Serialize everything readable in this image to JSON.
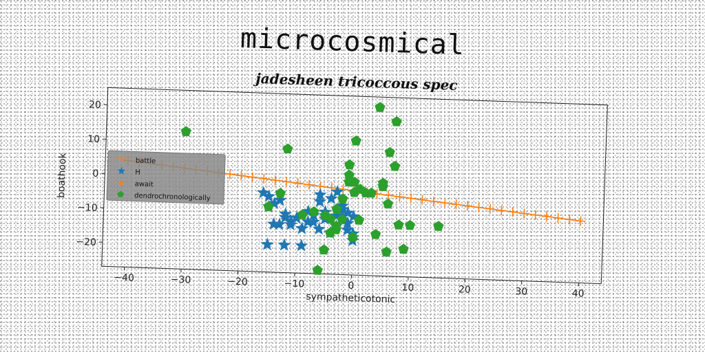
{
  "page": {
    "title": "microcosmical"
  },
  "chart_data": {
    "type": "scatter",
    "title": "jadesheen tricoccous spec",
    "xlabel": "sympatheticotonic",
    "ylabel": "boathook",
    "xlim": [
      -44,
      44
    ],
    "ylim": [
      -27,
      25
    ],
    "xticks": [
      -40,
      -30,
      -20,
      -10,
      0,
      10,
      20,
      30,
      40
    ],
    "yticks": [
      -20,
      -10,
      0,
      10,
      20
    ],
    "grid": false,
    "legend": {
      "position": "upper-left",
      "entries": [
        "battle",
        "H",
        "await",
        "dendrochronologically"
      ]
    },
    "series": [
      {
        "name": "battle",
        "kind": "line",
        "color": "#ff7f0e",
        "marker": "plus",
        "x": [
          -40.0,
          -38.0,
          -36.0,
          -34.0,
          -32.0,
          -30.0,
          -28.0,
          -26.0,
          -24.0,
          -22.0,
          -20.0,
          -18.0,
          -16.0,
          -14.0,
          -12.0,
          -10.0,
          -8.0,
          -6.0,
          -4.0,
          -2.0,
          0.0,
          2.0,
          4.0,
          6.0,
          8.0,
          10.0,
          12.0,
          14.0,
          16.0,
          18.0,
          20.0,
          22.0,
          24.0,
          26.0,
          28.0,
          30.0,
          32.0,
          34.0,
          36.0,
          38.0,
          40.0
        ],
        "y": [
          4.0,
          3.68,
          3.35,
          3.03,
          2.7,
          2.38,
          2.05,
          1.73,
          1.4,
          1.08,
          0.75,
          0.43,
          0.1,
          -0.23,
          -0.55,
          -0.88,
          -1.2,
          -1.53,
          -1.85,
          -2.18,
          -2.5,
          -2.83,
          -3.15,
          -3.48,
          -3.8,
          -4.13,
          -4.45,
          -4.78,
          -5.1,
          -5.43,
          -5.75,
          -6.08,
          -6.4,
          -6.73,
          -7.05,
          -7.38,
          -7.7,
          -8.03,
          -8.35,
          -8.68,
          -9.0
        ]
      },
      {
        "name": "H",
        "kind": "scatter",
        "color": "#1f77b4",
        "marker": "star",
        "x": [
          -16,
          -15,
          -14,
          -13,
          -12,
          -11,
          -10,
          -9,
          -8,
          -7,
          -6,
          -5,
          -4,
          -3,
          -2,
          -1,
          0,
          -15,
          -12,
          -9,
          -6,
          -3,
          -1,
          -14,
          -11,
          -8,
          -5,
          -2,
          0,
          -4,
          -6,
          -2,
          -3,
          -1,
          -15,
          -12,
          -9,
          -13,
          -7,
          -5,
          -2,
          -10,
          0,
          -1
        ],
        "y": [
          -4,
          -5,
          -7,
          -6,
          -10,
          -12,
          -11,
          -14,
          -9,
          -12,
          -6,
          -11,
          -5,
          -13,
          -8,
          -9,
          -17,
          -19,
          -19,
          -19,
          -4,
          -3,
          -12,
          -13,
          -13,
          -12,
          -9,
          -11,
          -15,
          -15,
          -14,
          -7,
          -10,
          -12,
          -8,
          -11,
          -14,
          -13,
          -10,
          -9,
          -10,
          -11,
          -10,
          -14
        ]
      },
      {
        "name": "await",
        "kind": "scatter",
        "color": "#ff7f0e",
        "marker": "circle",
        "x": [],
        "y": []
      },
      {
        "name": "dendrochronologically",
        "kind": "scatter",
        "color": "#2ca02c",
        "marker": "pentagon",
        "x": [
          -30,
          -12,
          -13,
          -15,
          -9,
          -7,
          -5,
          -4,
          -3,
          -2,
          -1,
          0,
          -1,
          -1,
          0,
          0,
          1,
          2,
          3,
          4,
          5,
          5,
          6,
          6,
          7,
          7,
          8,
          4,
          6,
          9,
          10,
          15,
          -5,
          -6,
          -3,
          -2,
          1,
          -4,
          -3,
          0
        ],
        "y": [
          13,
          9,
          -4,
          -8,
          -10,
          -9,
          -10,
          -11,
          -8,
          -5,
          0,
          -3,
          5,
          2,
          12,
          0,
          -2,
          -3,
          -3,
          22,
          0,
          -1,
          9,
          -6,
          18,
          5,
          -12,
          -15,
          -20,
          -19,
          -12,
          -12,
          -20,
          -26,
          -13,
          -11,
          -11,
          -15,
          -14,
          -16
        ]
      }
    ]
  }
}
